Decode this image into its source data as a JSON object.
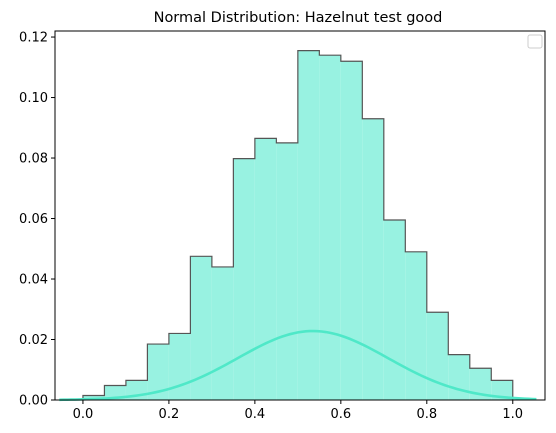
{
  "chart_data": {
    "type": "histogram",
    "title": "Normal Distribution: Hazelnut test good",
    "xlabel": "",
    "ylabel": "",
    "xlim": [
      -0.065,
      1.075
    ],
    "ylim": [
      0,
      0.122
    ],
    "x_ticks": [
      0.0,
      0.2,
      0.4,
      0.6,
      0.8,
      1.0
    ],
    "x_tick_labels": [
      "0.0",
      "0.2",
      "0.4",
      "0.6",
      "0.8",
      "1.0"
    ],
    "y_ticks": [
      0.0,
      0.02,
      0.04,
      0.06,
      0.08,
      0.1,
      0.12
    ],
    "y_tick_labels": [
      "0.00",
      "0.02",
      "0.04",
      "0.06",
      "0.08",
      "0.10",
      "0.12"
    ],
    "grid": false,
    "legend": {
      "placement": "top-right",
      "entries": []
    },
    "histogram": {
      "bin_edges": [
        0.0,
        0.05,
        0.1,
        0.15,
        0.2,
        0.25,
        0.3,
        0.35,
        0.4,
        0.45,
        0.5,
        0.55,
        0.6,
        0.65,
        0.7,
        0.75,
        0.8,
        0.85,
        0.9,
        0.95,
        1.0
      ],
      "values": [
        0.0015,
        0.0048,
        0.0065,
        0.0185,
        0.022,
        0.0475,
        0.044,
        0.0798,
        0.0865,
        0.085,
        0.1155,
        0.114,
        0.112,
        0.093,
        0.0595,
        0.049,
        0.029,
        0.015,
        0.0105,
        0.0065
      ],
      "fill_color": "#98f2e1",
      "edge_color": "#555555"
    },
    "curve": {
      "type": "normal-pdf",
      "mean": 0.535,
      "std": 0.175,
      "peak": 0.0228,
      "x_range": [
        -0.055,
        1.055
      ],
      "color": "#4fe8c8"
    }
  }
}
